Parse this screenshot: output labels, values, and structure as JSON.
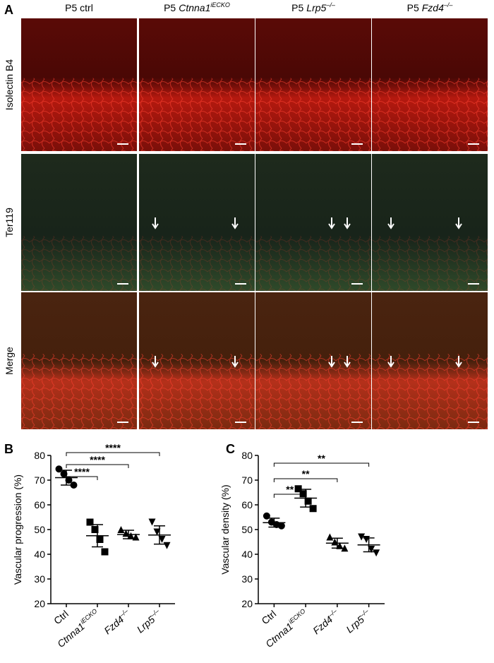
{
  "figure": {
    "panel_labels": [
      "A",
      "B",
      "C"
    ],
    "columns": [
      {
        "text": "P5 ctrl"
      },
      {
        "text": "P5",
        "gene": "Ctnna1",
        "sup": "iECKO"
      },
      {
        "text": "P5",
        "gene": "Lrp5",
        "sup": "–/–"
      },
      {
        "text": "P5",
        "gene": "Fzd4",
        "sup": "–/–"
      }
    ],
    "rows": [
      {
        "text": "Isolectin B4",
        "color": "#e0201b"
      },
      {
        "text": "Ter119",
        "color": "#4caf3a"
      },
      {
        "text": "Merge",
        "color": "#000000"
      }
    ]
  },
  "chart_data": [
    {
      "type": "dot",
      "y_label": "Vascular progression (%)",
      "categories": [
        "Ctrl",
        "Ctnna1",
        "Fzd4",
        "Lrp5"
      ],
      "category_sup": [
        null,
        "iECKO",
        "–/–",
        "–/–"
      ],
      "markers": [
        "circle",
        "square",
        "triangle",
        "triangle-down"
      ],
      "color": "#000000",
      "points": [
        [
          74.5,
          72.5,
          70,
          68
        ],
        [
          53,
          50,
          46,
          41
        ],
        [
          50,
          48.5,
          47.5,
          47
        ],
        [
          53,
          49,
          46,
          43.5
        ]
      ],
      "means": [
        71,
        47.5,
        48,
        47.8
      ],
      "errors": [
        3,
        4.5,
        1.7,
        3.7
      ],
      "ylim": [
        20,
        80
      ],
      "yticks": [
        20,
        30,
        40,
        50,
        60,
        70,
        80
      ],
      "comparisons": [
        {
          "from": 0,
          "to": 1,
          "label": "****"
        },
        {
          "from": 0,
          "to": 2,
          "label": "****"
        },
        {
          "from": 0,
          "to": 3,
          "label": "****"
        }
      ]
    },
    {
      "type": "dot",
      "y_label": "Vascular density (%)",
      "categories": [
        "Ctrl",
        "Ctnna1",
        "Fzd4",
        "Lrp5"
      ],
      "category_sup": [
        null,
        "iECKO",
        "–/–",
        "–/–"
      ],
      "markers": [
        "circle",
        "square",
        "triangle",
        "triangle-down"
      ],
      "color": "#000000",
      "points": [
        [
          55.5,
          53,
          52,
          51.5
        ],
        [
          66.5,
          64.5,
          61.5,
          58.5
        ],
        [
          47,
          45,
          43.5,
          42.5
        ],
        [
          47,
          46,
          42,
          40.5
        ]
      ],
      "means": [
        52.8,
        62.7,
        44.5,
        43.8
      ],
      "errors": [
        1.8,
        3.6,
        2,
        2.8
      ],
      "ylim": [
        20,
        80
      ],
      "yticks": [
        20,
        30,
        40,
        50,
        60,
        70,
        80
      ],
      "comparisons": [
        {
          "from": 0,
          "to": 1,
          "label": "**"
        },
        {
          "from": 0,
          "to": 2,
          "label": "**"
        },
        {
          "from": 0,
          "to": 3,
          "label": "**"
        }
      ]
    }
  ]
}
